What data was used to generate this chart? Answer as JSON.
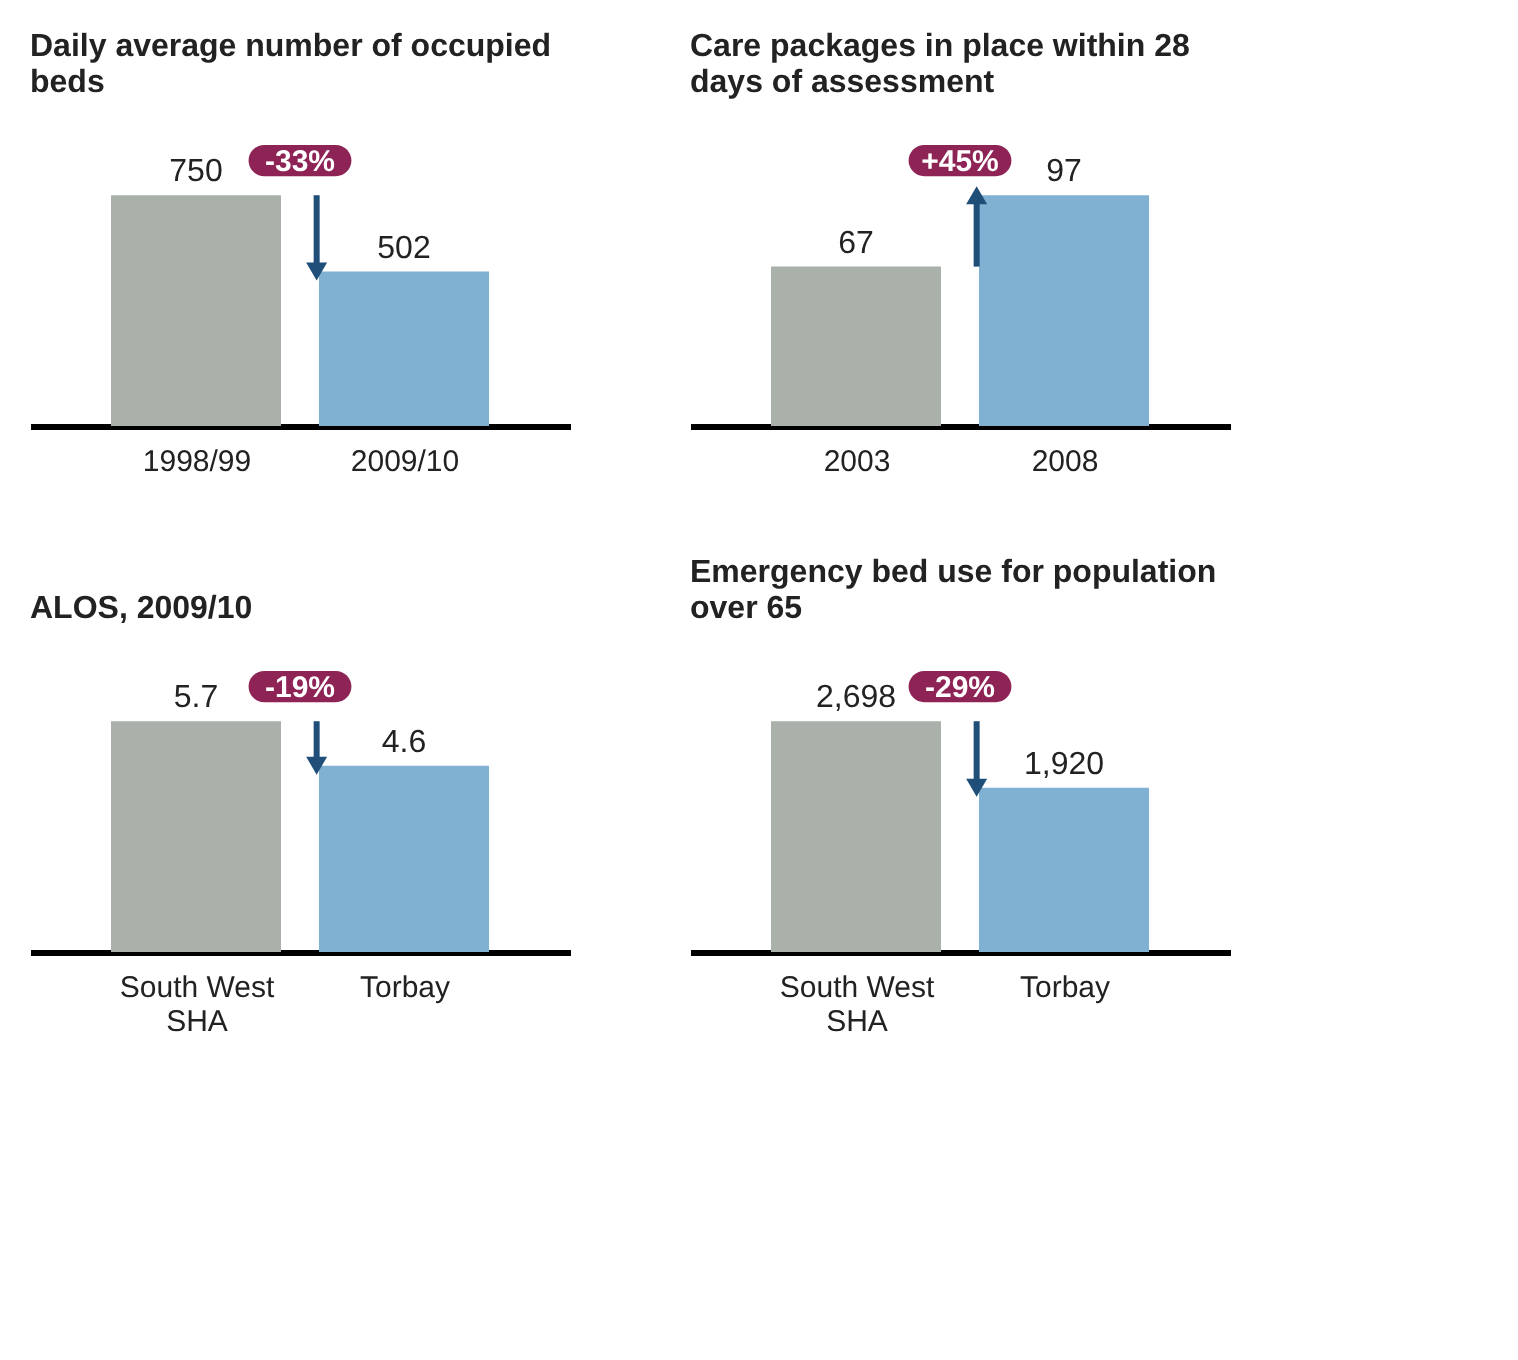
{
  "chart_data": [
    {
      "type": "bar",
      "title": "Daily average number of occupied beds",
      "categories": [
        "1998/99",
        "2009/10"
      ],
      "values": [
        750,
        502
      ],
      "colors": [
        "#a9b1aa",
        "#80b0d2"
      ],
      "data_labels": true,
      "annotations": [
        "-33%"
      ]
    },
    {
      "type": "bar",
      "title": "Care packages in place within 28 days of assessment",
      "categories": [
        "2003",
        "2008"
      ],
      "values": [
        67,
        97
      ],
      "colors": [
        "#a9b1aa",
        "#80b0d2"
      ],
      "data_labels": true,
      "annotations": [
        "+45%"
      ]
    },
    {
      "type": "bar",
      "title": "ALOS, 2009/10",
      "categories": [
        "South West SHA",
        "Torbay"
      ],
      "values": [
        5.7,
        4.6
      ],
      "colors": [
        "#a9b1aa",
        "#80b0d2"
      ],
      "data_labels": true,
      "annotations": [
        "-19%"
      ]
    },
    {
      "type": "bar",
      "title": "Emergency bed use for population over 65",
      "categories": [
        "South West SHA",
        "Torbay"
      ],
      "values": [
        2698,
        1920
      ],
      "value_labels": [
        "2,698",
        "1,920"
      ],
      "colors": [
        "#a9b1aa",
        "#80b0d2"
      ],
      "annotations": [
        "-29%"
      ]
    }
  ]
}
